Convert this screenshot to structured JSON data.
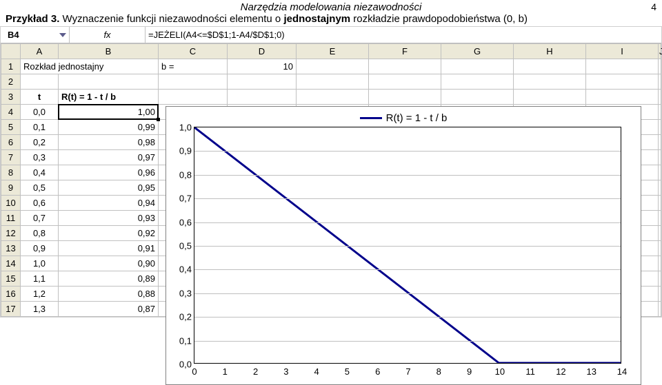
{
  "header": {
    "doc_title": "Narzędzia modelowania niezawodności",
    "page_number": "4",
    "example_label": "Przykład 3.",
    "example_text_pre": " Wyznaczenie funkcji niezawodności elementu o ",
    "example_text_strong": "jednostajnym",
    "example_text_post": " rozkładzie prawdopodobieństwa (0, b)"
  },
  "excel": {
    "name_box": "B4",
    "fx_symbol": "fx",
    "formula": "=JEŻELI(A4<=$D$1;1-A4/$D$1;0)",
    "columns": [
      "A",
      "B",
      "C",
      "D",
      "E",
      "F",
      "G",
      "H",
      "I",
      "J"
    ],
    "row1": {
      "a": "Rozkład jednostajny",
      "c": "b =",
      "d": "10"
    },
    "row3": {
      "a": "t",
      "b": "R(t) = 1 - t / b"
    },
    "data_rows": [
      {
        "n": "4",
        "t": "0,0",
        "r": "1,00"
      },
      {
        "n": "5",
        "t": "0,1",
        "r": "0,99"
      },
      {
        "n": "6",
        "t": "0,2",
        "r": "0,98"
      },
      {
        "n": "7",
        "t": "0,3",
        "r": "0,97"
      },
      {
        "n": "8",
        "t": "0,4",
        "r": "0,96"
      },
      {
        "n": "9",
        "t": "0,5",
        "r": "0,95"
      },
      {
        "n": "10",
        "t": "0,6",
        "r": "0,94"
      },
      {
        "n": "11",
        "t": "0,7",
        "r": "0,93"
      },
      {
        "n": "12",
        "t": "0,8",
        "r": "0,92"
      },
      {
        "n": "13",
        "t": "0,9",
        "r": "0,91"
      },
      {
        "n": "14",
        "t": "1,0",
        "r": "0,90"
      },
      {
        "n": "15",
        "t": "1,1",
        "r": "0,89"
      },
      {
        "n": "16",
        "t": "1,2",
        "r": "0,88"
      },
      {
        "n": "17",
        "t": "1,3",
        "r": "0,87"
      }
    ]
  },
  "chart": {
    "legend_label": "R(t) = 1 - t / b",
    "x_ticks": [
      "0",
      "1",
      "2",
      "3",
      "4",
      "5",
      "6",
      "7",
      "8",
      "9",
      "10",
      "11",
      "12",
      "13",
      "14"
    ],
    "y_ticks": [
      "0,0",
      "0,1",
      "0,2",
      "0,3",
      "0,4",
      "0,5",
      "0,6",
      "0,7",
      "0,8",
      "0,9",
      "1,0"
    ],
    "series": {
      "color": "#00008b",
      "stroke_width": 3,
      "xlim": [
        0,
        14
      ],
      "ylim": [
        0,
        1
      ],
      "points": [
        [
          0,
          1.0
        ],
        [
          10,
          0.0
        ],
        [
          14,
          0.0
        ]
      ]
    }
  }
}
